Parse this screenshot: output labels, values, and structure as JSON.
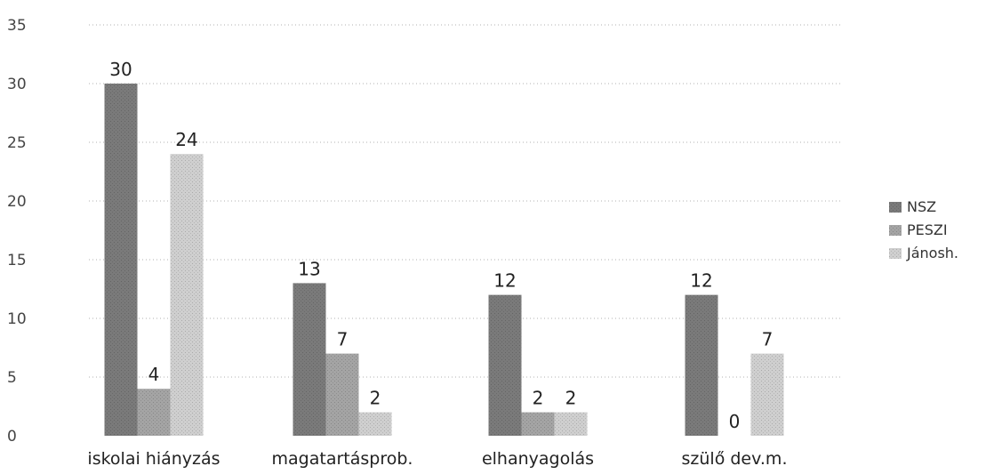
{
  "chart_data": {
    "type": "bar",
    "categories": [
      "iskolai hiányzás",
      "magatartásprob.",
      "elhanyagolás",
      "szülő dev.m."
    ],
    "series": [
      {
        "name": "NSZ",
        "values": [
          30,
          13,
          12,
          12
        ],
        "color": "#7a7a7a"
      },
      {
        "name": "PESZI",
        "values": [
          4,
          7,
          2,
          0
        ],
        "color": "#a4a4a4"
      },
      {
        "name": "Jánosh.",
        "values": [
          24,
          2,
          2,
          7
        ],
        "color": "#cfcfcf"
      }
    ],
    "y_ticks": [
      0,
      5,
      10,
      15,
      20,
      25,
      30,
      35
    ],
    "ylim": [
      0,
      35
    ],
    "grid": true,
    "legend_position": "right"
  }
}
